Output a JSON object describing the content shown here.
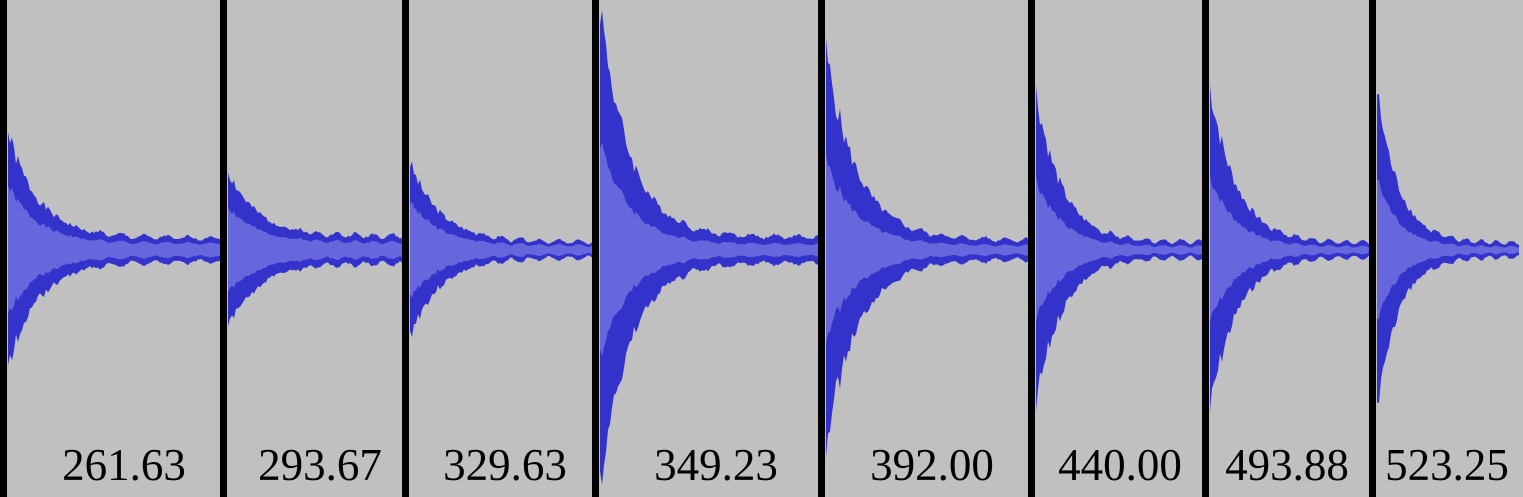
{
  "colors": {
    "background": "#c0c0c0",
    "waveform_peak": "#3333cc",
    "waveform_rms": "#6666dd",
    "separator": "#000000"
  },
  "clips": [
    {
      "label": "261.63"
    },
    {
      "label": "293.67"
    },
    {
      "label": "329.63"
    },
    {
      "label": "349.23"
    },
    {
      "label": "392.00"
    },
    {
      "label": "440.00"
    },
    {
      "label": "493.88"
    },
    {
      "label": "523.25"
    }
  ]
}
